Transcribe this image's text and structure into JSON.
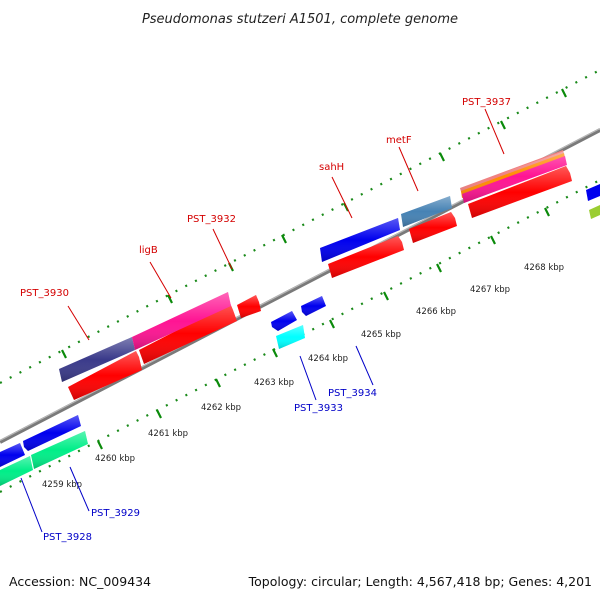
{
  "title": "Pseudomonas stutzeri A1501, complete genome",
  "accession": "Accession: NC_009434",
  "summary": "Topology: circular; Length: 4,567,418 bp; Genes: 4,201",
  "kbp_labels": [
    "4259 kbp",
    "4260 kbp",
    "4261 kbp",
    "4262 kbp",
    "4263 kbp",
    "4264 kbp",
    "4265 kbp",
    "4266 kbp",
    "4267 kbp",
    "4268 kbp"
  ],
  "gene_labels_forward": [
    "PST_3930",
    "ligB",
    "PST_3932",
    "sahH",
    "metF",
    "PST_3937"
  ],
  "gene_labels_reverse": [
    "PST_3928",
    "PST_3929",
    "PST_3933",
    "PST_3934"
  ],
  "colors": {
    "forward_cds": "#ff0000",
    "reverse_cds": "#0000ee",
    "backbone": "#888888",
    "tick": "#0a8a0a",
    "label_forward": "#d40000",
    "label_reverse": "#0000c8",
    "magenta": "#ff1493",
    "navy": "#3a3a8a",
    "steelblue": "#4682b4",
    "cyan": "#00ffff",
    "green": "#00ee88",
    "orange": "#ff8c00",
    "lime": "#9acd32"
  }
}
